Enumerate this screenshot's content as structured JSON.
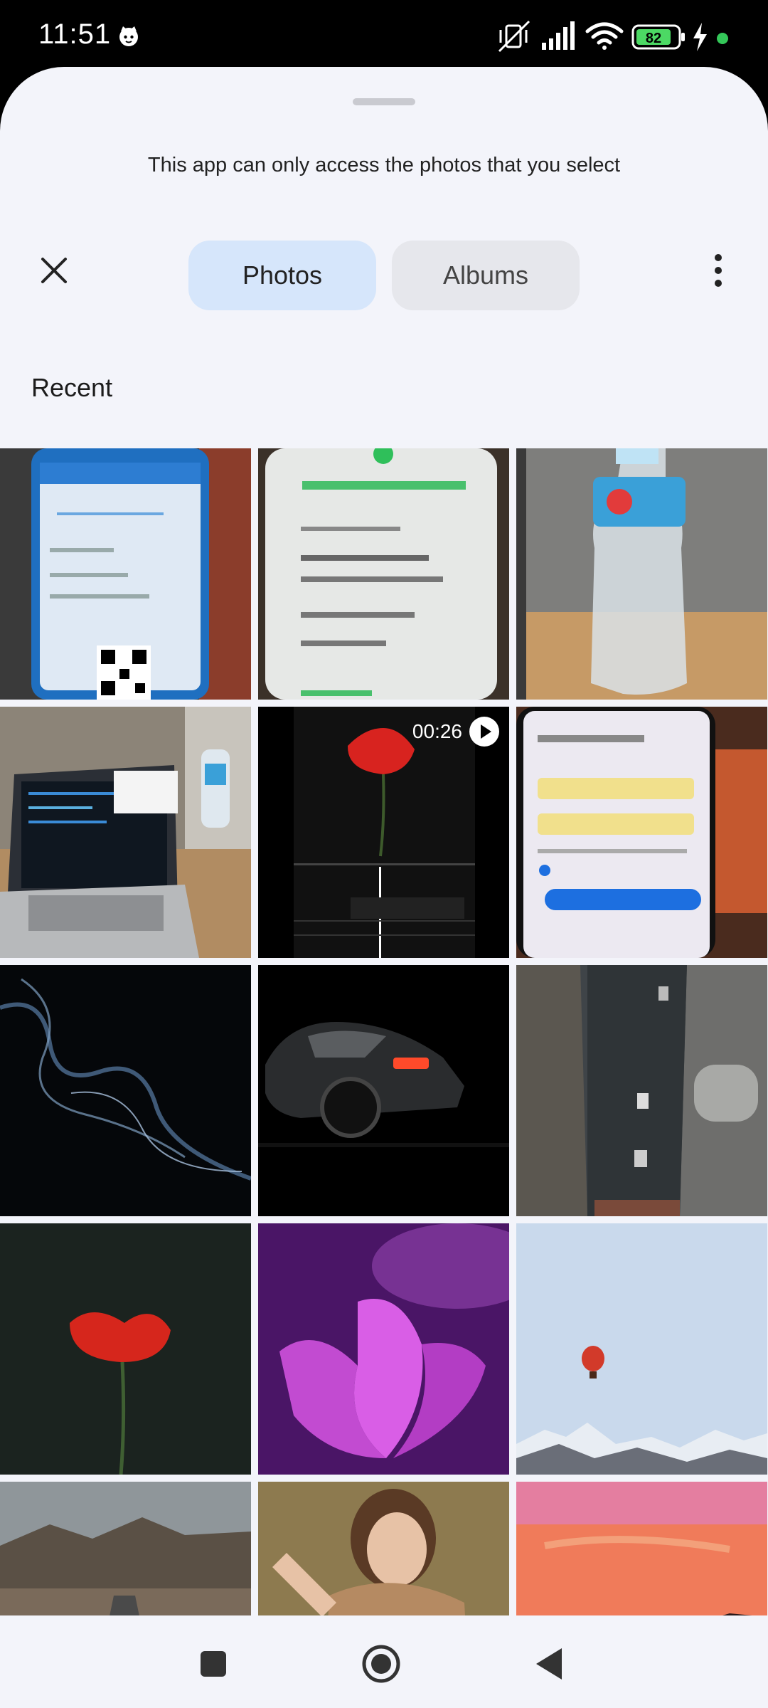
{
  "status_bar": {
    "time": "11:51",
    "battery_level": "82",
    "icons": [
      "cat-face-icon",
      "mute-vibrate-icon",
      "signal-icon",
      "wifi-icon",
      "battery-icon",
      "charging-icon",
      "dot-icon"
    ],
    "accent_dot_color": "#34c759"
  },
  "sheet": {
    "notice": "This app can only access the photos that you select",
    "close_icon": "close-icon",
    "more_icon": "more-vertical-icon"
  },
  "tabs": [
    {
      "label": "Photos",
      "selected": true
    },
    {
      "label": "Albums",
      "selected": false
    }
  ],
  "section": {
    "title": "Recent"
  },
  "grid": {
    "items": [
      {
        "desc": "phone-screenshot-qr"
      },
      {
        "desc": "phone-transaction-successful"
      },
      {
        "desc": "water-bottle"
      },
      {
        "desc": "laptop-on-desk"
      },
      {
        "desc": "video-red-flower",
        "duration": "00:26"
      },
      {
        "desc": "phone-create-account"
      },
      {
        "desc": "smoke"
      },
      {
        "desc": "dark-car"
      },
      {
        "desc": "city-street-aerial"
      },
      {
        "desc": "red-poppy"
      },
      {
        "desc": "purple-magnolia"
      },
      {
        "desc": "hot-air-balloon-mountains"
      },
      {
        "desc": "mountain-road"
      },
      {
        "desc": "woman-portrait"
      },
      {
        "desc": "sunset-sky"
      }
    ]
  },
  "nav": {
    "icons": [
      "recents-square-icon",
      "home-circle-icon",
      "back-triangle-icon"
    ]
  }
}
